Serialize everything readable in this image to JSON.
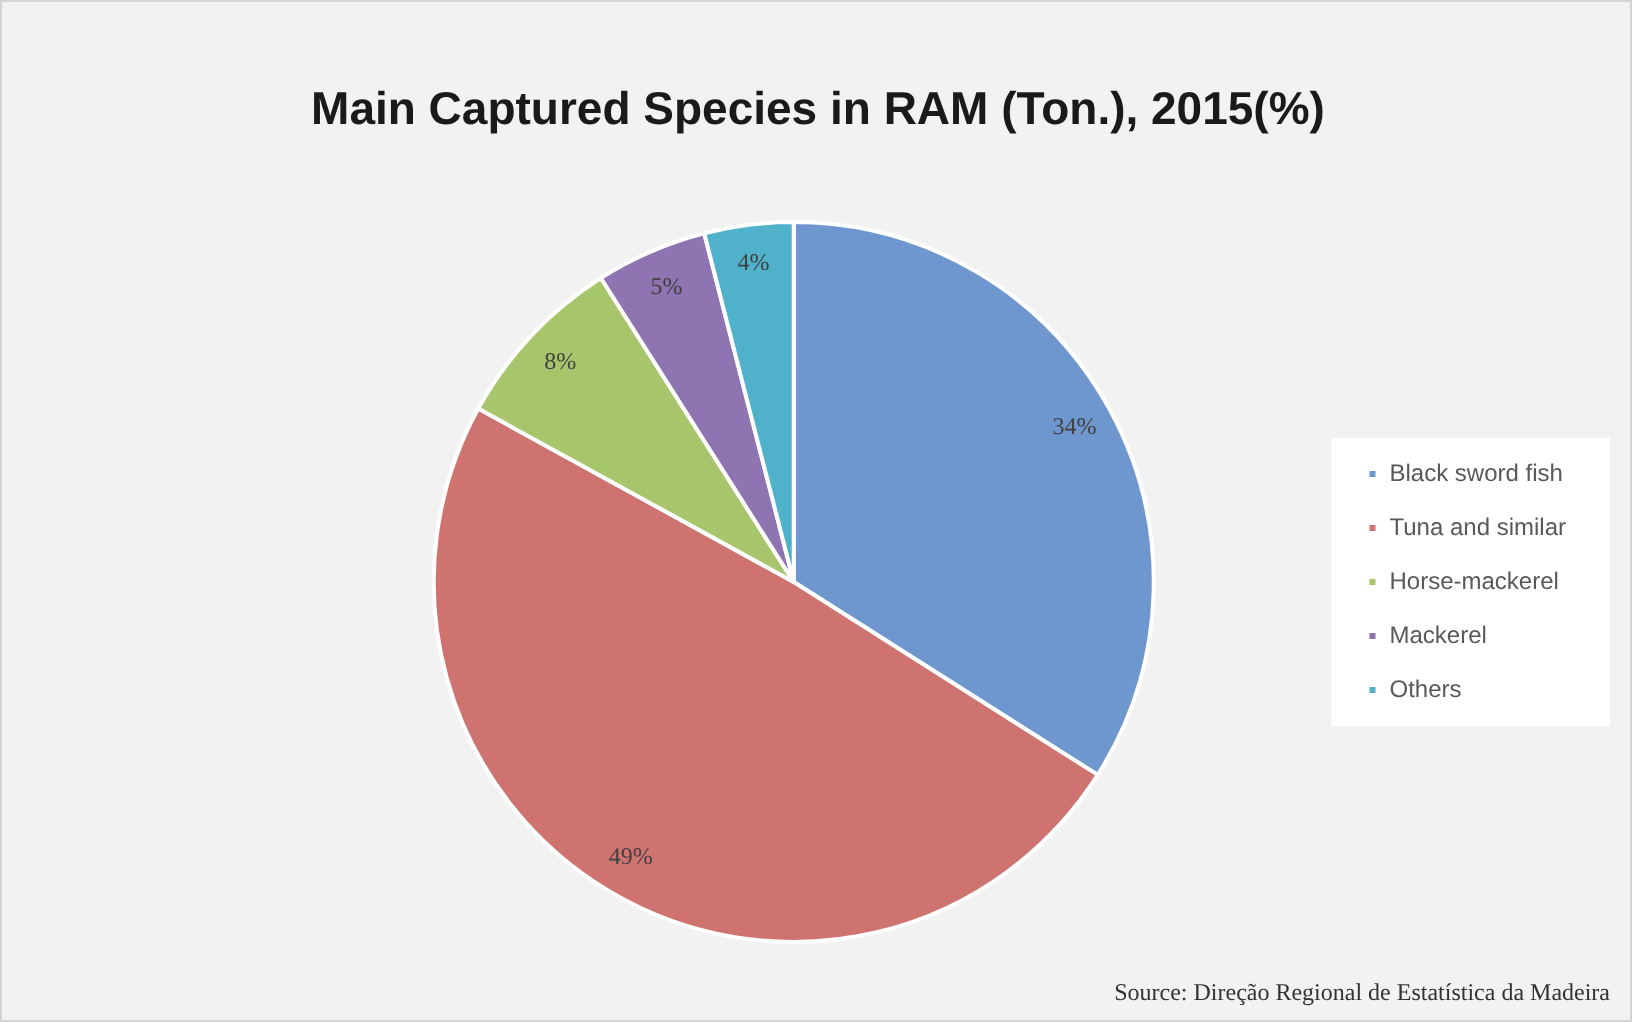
{
  "chart_data": {
    "type": "pie",
    "title": "Main Captured Species in RAM (Ton.), 2015(%)",
    "categories": [
      "Black sword fish",
      "Tuna and similar",
      "Horse-mackerel",
      "Mackerel",
      "Others"
    ],
    "values": [
      34,
      49,
      8,
      5,
      4
    ],
    "colors": [
      "#6f97cf",
      "#cf7370",
      "#a7c56b",
      "#8f74b2",
      "#4fb1ca"
    ],
    "value_labels": [
      "34%",
      "49%",
      "8%",
      "5%",
      "4%"
    ],
    "legend": "right",
    "annotations": [
      "Source: Direção Regional de Estatística da Madeira"
    ]
  }
}
